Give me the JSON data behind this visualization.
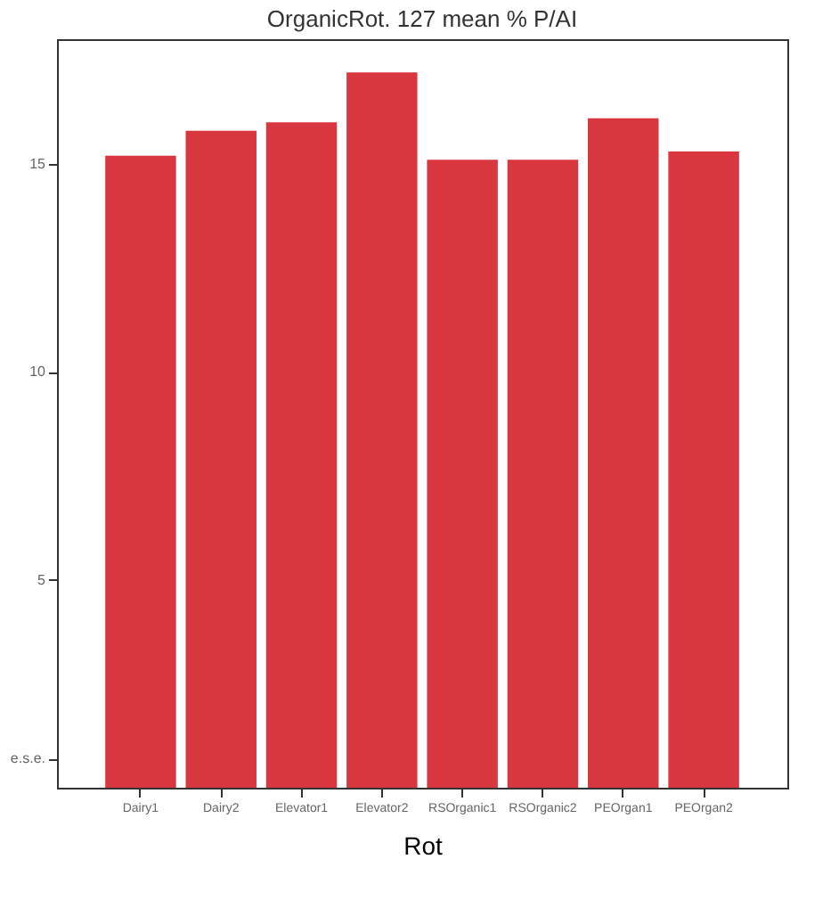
{
  "chart_data": {
    "type": "bar",
    "title": "OrganicRot. 127  mean % P/AI",
    "xlabel": "Rot",
    "categories": [
      "Dairy1",
      "Dairy2",
      "Elevator1",
      "Elevator2",
      "RSOrganic1",
      "RSOrganic2",
      "PEOrgan1",
      "PEOrgan2"
    ],
    "values": [
      15.2,
      15.8,
      16.0,
      17.2,
      15.1,
      15.1,
      16.1,
      15.3
    ],
    "color": "#d8373f",
    "ylim": [
      0,
      18
    ],
    "yticks": [
      {
        "value": 0.7,
        "label": "e.s.e."
      },
      5,
      10,
      15
    ],
    "grid": false
  }
}
